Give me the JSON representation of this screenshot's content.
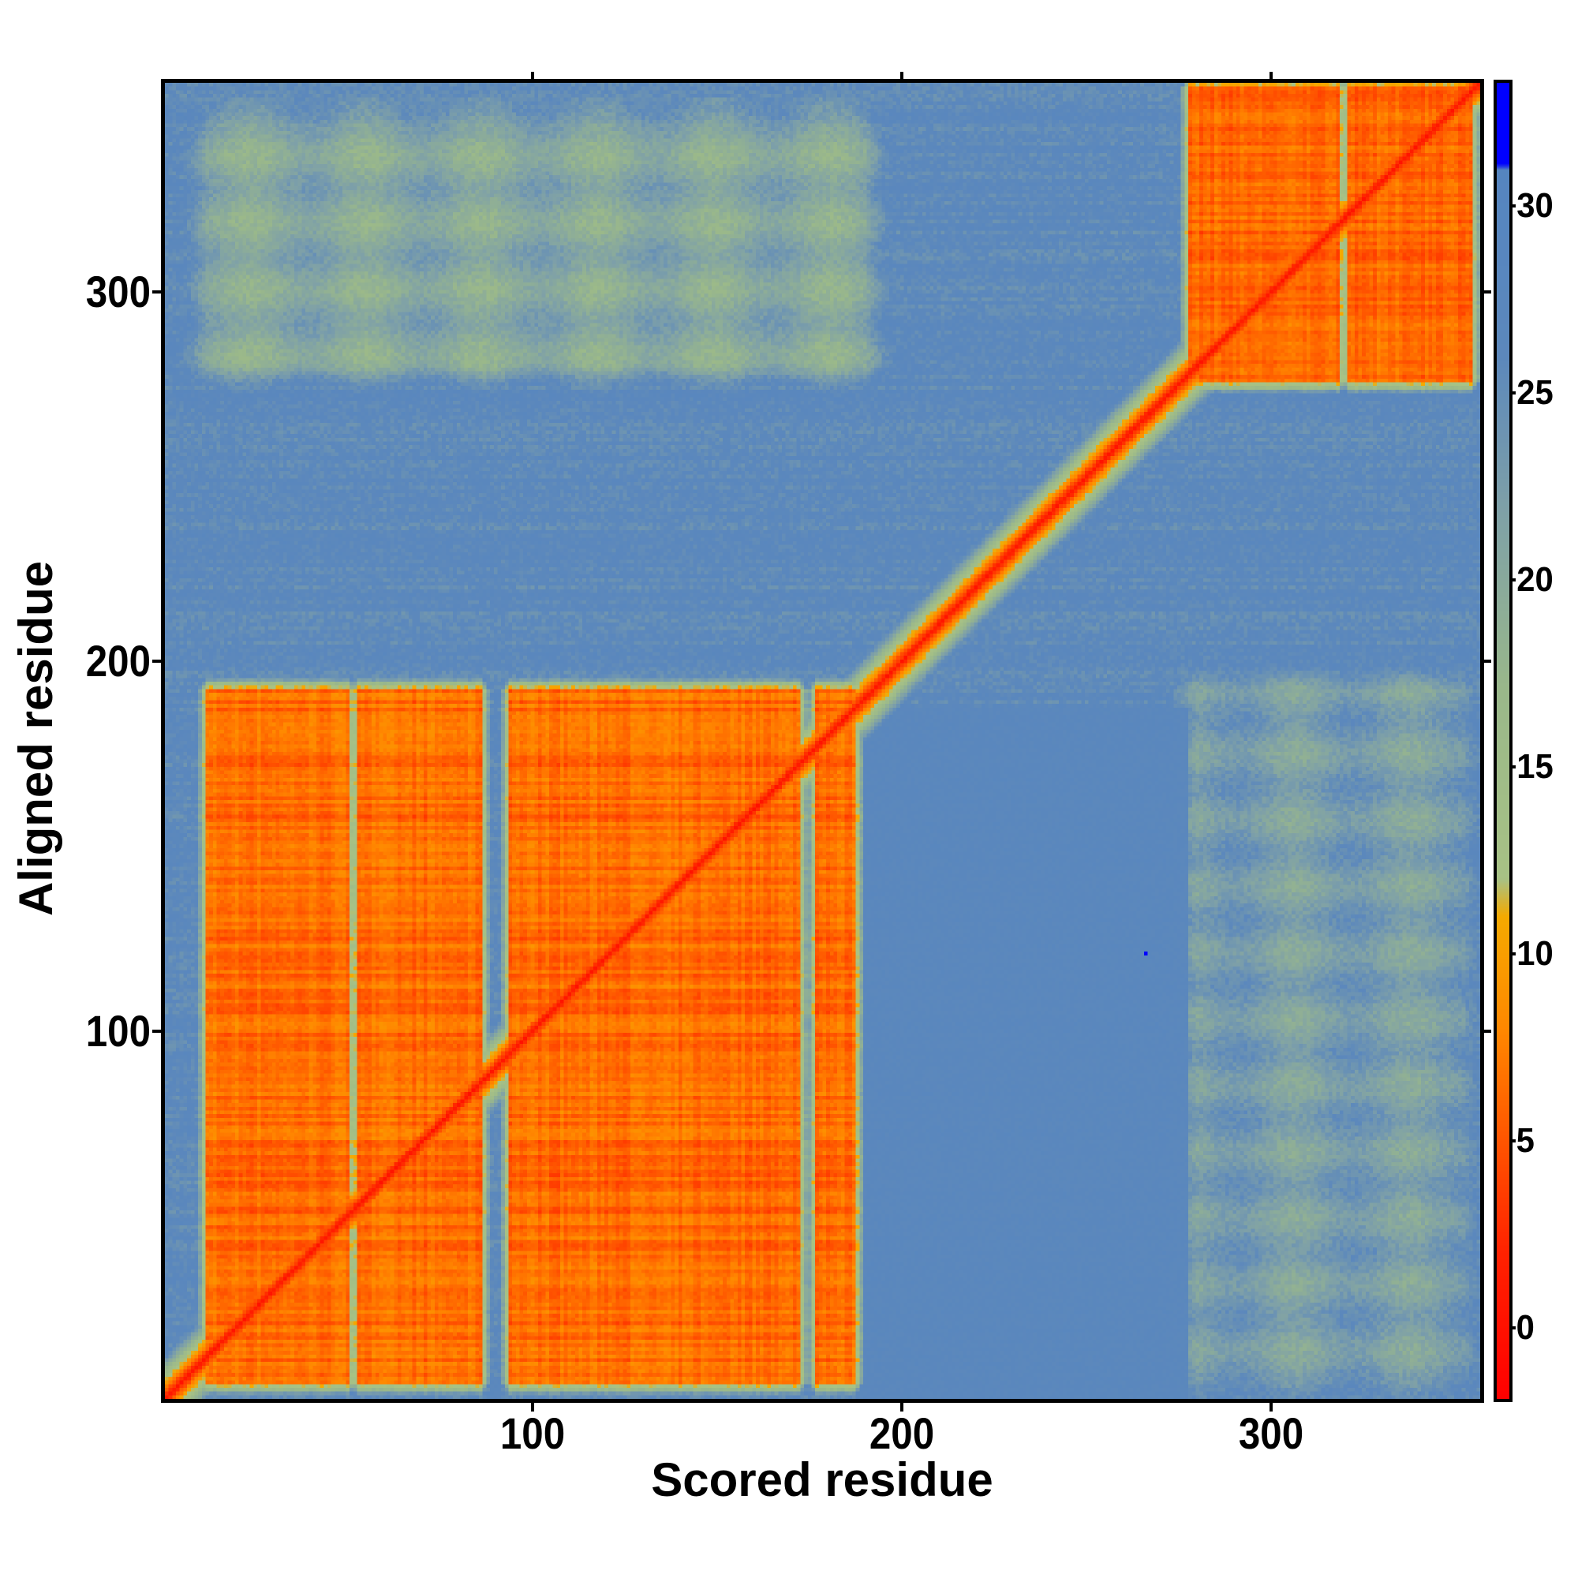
{
  "chart_data": {
    "type": "heatmap",
    "title": "",
    "xlabel": "Scored residue",
    "ylabel": "Aligned residue",
    "n_residues": 356,
    "xlim": [
      0.5,
      356.5
    ],
    "ylim": [
      0.5,
      356.5
    ],
    "x_ticks": [
      100,
      200,
      300
    ],
    "y_ticks": [
      100,
      200,
      300
    ],
    "colorbar": {
      "range": [
        -1.9,
        33.3
      ],
      "ticks": [
        0,
        5,
        10,
        15,
        20,
        25,
        30
      ],
      "stops": [
        {
          "value": -2,
          "color": "#ff0000"
        },
        {
          "value": 2,
          "color": "#ff2200"
        },
        {
          "value": 5,
          "color": "#ff5500"
        },
        {
          "value": 8,
          "color": "#ff8800"
        },
        {
          "value": 11,
          "color": "#f5aa00"
        },
        {
          "value": 12,
          "color": "#a8c285"
        },
        {
          "value": 17,
          "color": "#9ab88a"
        },
        {
          "value": 22,
          "color": "#7ea0a8"
        },
        {
          "value": 26,
          "color": "#5c88bc"
        },
        {
          "value": 31,
          "color": "#5585c0"
        },
        {
          "value": 31.1,
          "color": "#0000ff"
        }
      ]
    },
    "structure": {
      "diagonal_value": 0,
      "background_value": 26,
      "domain_a": {
        "y_range": [
          5,
          192
        ],
        "column_blocks": [
          [
            12,
            50
          ],
          [
            53,
            86
          ],
          [
            94,
            172
          ],
          [
            177,
            187
          ]
        ],
        "value": 3
      },
      "domain_b": {
        "x_range": [
          278,
          354
        ],
        "y_range": [
          276,
          355
        ],
        "column_blocks": [
          [
            278,
            318
          ],
          [
            321,
            354
          ]
        ],
        "value": 3
      },
      "linker_range": [
        188,
        277
      ],
      "inter_domain_stripes": [
        {
          "x_range": [
            12,
            190
          ],
          "y_range": [
            280,
            345
          ],
          "value": 19
        },
        {
          "x_range": [
            280,
            352
          ],
          "y_range": [
            5,
            192
          ],
          "value": 21
        }
      ],
      "outlier": {
        "x": 266,
        "y": 121,
        "value": 33
      }
    }
  }
}
